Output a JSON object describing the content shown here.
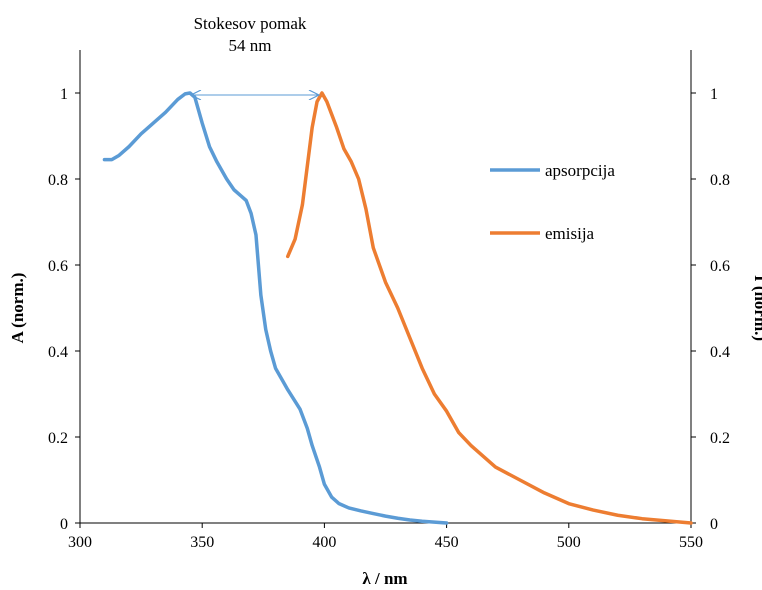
{
  "chart_data": {
    "type": "line",
    "title": "",
    "xlabel": "λ / nm",
    "ylabel_left": "A (norm.)",
    "ylabel_right": "I (norm.)",
    "xlim": [
      300,
      550
    ],
    "ylim": [
      0,
      1.1
    ],
    "x_ticks": [
      300,
      350,
      400,
      450,
      500,
      550
    ],
    "y_ticks": [
      0,
      0.2,
      0.4,
      0.6,
      0.8,
      1
    ],
    "y_tick_labels": [
      "0",
      "0.2",
      "0.4",
      "0.6",
      "0.8",
      "1"
    ],
    "grid": false,
    "legend_position": "right",
    "annotation": {
      "lines": [
        "Stokesov pomak",
        "54 nm"
      ],
      "arrow_from_x": 345,
      "arrow_to_x": 399,
      "arrow_y": 1.0
    },
    "series": [
      {
        "name": "apsorpcija",
        "color": "#5b9bd5",
        "x": [
          310,
          313,
          316,
          320,
          325,
          330,
          335,
          340,
          343,
          345,
          347,
          350,
          353,
          356,
          360,
          363,
          366,
          368,
          370,
          372,
          374,
          376,
          378,
          380,
          385,
          390,
          393,
          395,
          398,
          400,
          403,
          406,
          410,
          415,
          420,
          425,
          430,
          435,
          440,
          445,
          450
        ],
        "y": [
          0.845,
          0.845,
          0.855,
          0.875,
          0.905,
          0.93,
          0.955,
          0.985,
          0.998,
          1.0,
          0.99,
          0.93,
          0.875,
          0.84,
          0.8,
          0.775,
          0.76,
          0.75,
          0.72,
          0.67,
          0.53,
          0.45,
          0.4,
          0.36,
          0.31,
          0.265,
          0.22,
          0.18,
          0.13,
          0.09,
          0.06,
          0.045,
          0.035,
          0.028,
          0.022,
          0.016,
          0.011,
          0.007,
          0.004,
          0.002,
          0.0
        ]
      },
      {
        "name": "emisija",
        "color": "#ed7d31",
        "x": [
          385,
          388,
          391,
          393,
          395,
          397,
          399,
          401,
          403,
          405,
          408,
          411,
          414,
          417,
          420,
          425,
          430,
          435,
          440,
          445,
          450,
          455,
          460,
          470,
          480,
          490,
          500,
          510,
          520,
          530,
          540,
          550
        ],
        "y": [
          0.62,
          0.66,
          0.74,
          0.83,
          0.92,
          0.98,
          1.0,
          0.98,
          0.95,
          0.92,
          0.87,
          0.84,
          0.8,
          0.73,
          0.64,
          0.56,
          0.5,
          0.43,
          0.36,
          0.3,
          0.26,
          0.21,
          0.18,
          0.13,
          0.1,
          0.07,
          0.045,
          0.03,
          0.018,
          0.01,
          0.005,
          0.0
        ]
      }
    ]
  }
}
